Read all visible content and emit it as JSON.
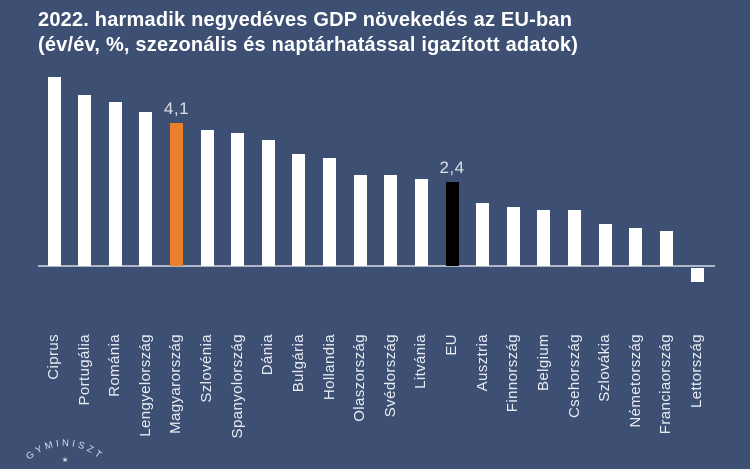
{
  "title": {
    "line1": "2022. harmadik negyedéves GDP növekedés az EU-ban",
    "line2": "(év/év, %, szezonális és naptárhatással igazított adatok)"
  },
  "chart_data": {
    "type": "bar",
    "title": "2022. harmadik negyedéves GDP növekedés az EU-ban (év/év, %, szezonális és naptárhatással igazított adatok)",
    "categories": [
      "Ciprus",
      "Portugália",
      "Románia",
      "Lengyelország",
      "Magyarország",
      "Szlovénia",
      "Spanyolország",
      "Dánia",
      "Bulgária",
      "Hollandia",
      "Olaszország",
      "Svédország",
      "Litvánia",
      "EU",
      "Ausztria",
      "Finnország",
      "Belgium",
      "Csehország",
      "Szlovákia",
      "Németország",
      "Franciaország",
      "Lettország"
    ],
    "values": [
      5.4,
      4.9,
      4.7,
      4.4,
      4.1,
      3.9,
      3.8,
      3.6,
      3.2,
      3.1,
      2.6,
      2.6,
      2.5,
      2.4,
      1.8,
      1.7,
      1.6,
      1.6,
      1.2,
      1.1,
      1.0,
      -0.4
    ],
    "unit": "%",
    "xlabel": "",
    "ylabel": "",
    "ylim": [
      -0.6,
      5.6
    ],
    "grid": false,
    "legend": "none",
    "bar_colors": {
      "default": "#ffffff",
      "Magyarország": "#e8802c",
      "EU": "#000000"
    },
    "data_labels": [
      {
        "category": "Magyarország",
        "text": "4,1"
      },
      {
        "category": "EU",
        "text": "2,4"
      }
    ],
    "background_color": "#3d4f72",
    "axis_color": "#aeb7c6"
  },
  "logo": {
    "arc_text": "GYMINISZT",
    "star": "✶"
  }
}
